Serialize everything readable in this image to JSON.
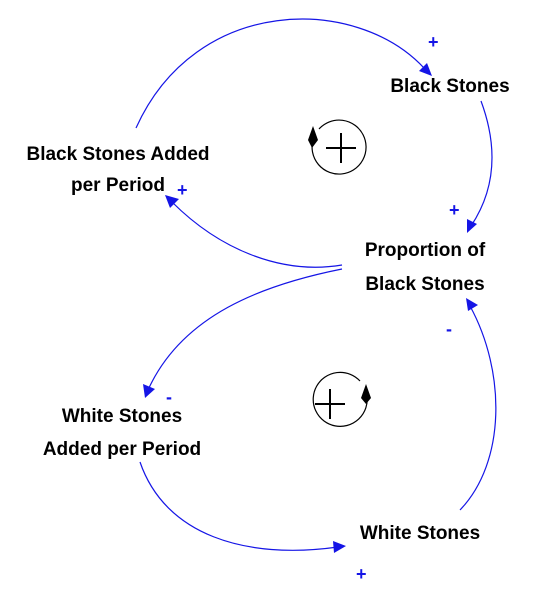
{
  "colors": {
    "link": "#1515e6",
    "polarity": "#1515e6",
    "text": "#000000",
    "loop": "#000000",
    "background": "#ffffff"
  },
  "nodes": {
    "black_stones": "Black Stones",
    "black_added_line1": "Black Stones Added",
    "black_added_line2": "per Period",
    "proportion_line1": "Proportion of",
    "proportion_line2": "Black Stones",
    "white_added_line1": "White Stones",
    "white_added_line2": "Added per Period",
    "white_stones": "White Stones"
  },
  "links": [
    {
      "from": "Black Stones Added per Period",
      "to": "Black Stones",
      "polarity": "+"
    },
    {
      "from": "Black Stones",
      "to": "Proportion of Black Stones",
      "polarity": "+"
    },
    {
      "from": "Proportion of Black Stones",
      "to": "Black Stones Added per Period",
      "polarity": "+"
    },
    {
      "from": "Proportion of Black Stones",
      "to": "White Stones Added per Period",
      "polarity": "-"
    },
    {
      "from": "White Stones Added per Period",
      "to": "White Stones",
      "polarity": "+"
    },
    {
      "from": "White Stones",
      "to": "Proportion of Black Stones",
      "polarity": "-"
    }
  ],
  "loops": [
    {
      "name": "top-loop",
      "sign": "+",
      "direction": "counterclockwise"
    },
    {
      "name": "bottom-loop",
      "sign": "+",
      "direction": "clockwise"
    }
  ]
}
